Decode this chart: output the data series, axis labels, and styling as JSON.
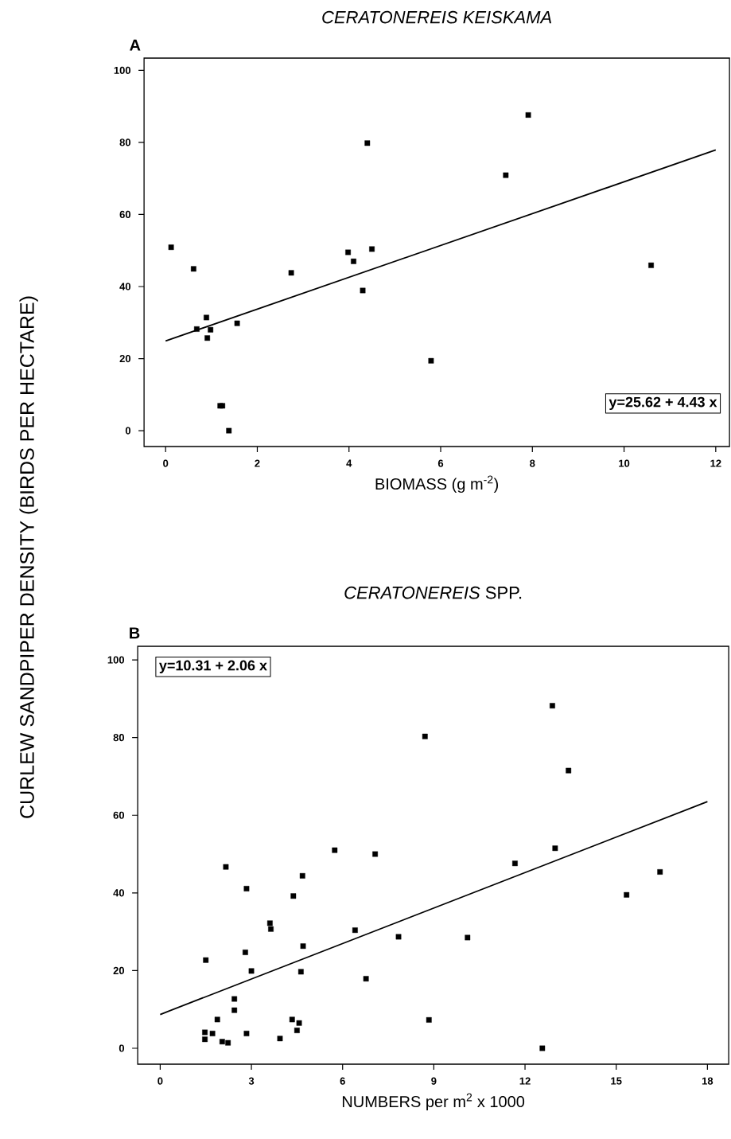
{
  "chart_data": [
    {
      "type": "scatter",
      "title": "*CERATONEREIS KEISKAMA*",
      "xlabel": "BIOMASS  (g m$^{-2}$)",
      "ylabel": "CURLEW SANDPIPER DENSITY (BIRDS PER HECTARE)",
      "annotations": [
        "A",
        "y=25.62 + 4.43 x"
      ],
      "marker": "square",
      "xlim": [
        -0.47,
        12.3
      ],
      "ylim": [
        -4.4,
        103.4
      ],
      "xticks": [
        0,
        2,
        4,
        6,
        8,
        10,
        12
      ],
      "yticks": [
        0,
        20,
        40,
        60,
        80,
        100
      ],
      "series": [
        {
          "color": "#000000",
          "x": [
            0.12,
            0.61,
            0.68,
            0.89,
            0.91,
            0.98,
            1.19,
            1.24,
            1.38,
            1.56,
            2.74,
            3.98,
            4.1,
            4.3,
            4.4,
            4.5,
            5.79,
            7.42,
            7.91,
            10.59
          ],
          "values": [
            50.9,
            44.9,
            28.2,
            31.4,
            25.7,
            28.0,
            6.9,
            6.9,
            0,
            29.8,
            43.8,
            49.5,
            47.0,
            38.9,
            79.8,
            50.4,
            19.4,
            70.9,
            87.6,
            45.9
          ]
        },
        {
          "type": "line",
          "marker": "none",
          "color": "#000000",
          "x": [
            0,
            12
          ],
          "values": [
            24.9,
            77.9
          ]
        }
      ]
    },
    {
      "type": "scatter",
      "title": "*CERATONEREIS*    SPP.",
      "xlabel": "NUMBERS per m$^{2}$ x 1000",
      "annotations": [
        "B",
        "y=10.31 +  2.06 x"
      ],
      "marker": "square",
      "xlim": [
        -0.74,
        18.7
      ],
      "ylim": [
        -4.1,
        103.5
      ],
      "xticks": [
        0,
        3,
        6,
        9,
        12,
        15,
        18
      ],
      "yticks": [
        0,
        20,
        40,
        60,
        80,
        100
      ],
      "series": [
        {
          "color": "#000000",
          "x": [
            8.71,
            5.74,
            7.07,
            2.16,
            4.68,
            2.84,
            4.38,
            3.61,
            3.64,
            6.41,
            7.84,
            4.7,
            1.5,
            2.8,
            3.0,
            4.63,
            6.77,
            2.44,
            2.44,
            1.88,
            8.84,
            4.34,
            4.57,
            4.5,
            1.47,
            1.72,
            1.47,
            2.84,
            3.94,
            2.04,
            2.23,
            12.9,
            13.43,
            12.99,
            11.67,
            16.44,
            15.34,
            10.11,
            12.57
          ],
          "values": [
            80.3,
            51.0,
            50.0,
            46.7,
            44.4,
            41.1,
            39.2,
            32.2,
            30.7,
            30.4,
            28.7,
            26.3,
            22.7,
            24.7,
            19.9,
            19.7,
            17.9,
            12.7,
            9.8,
            7.4,
            7.3,
            7.4,
            6.5,
            4.6,
            4.1,
            3.8,
            2.3,
            3.8,
            2.5,
            1.7,
            1.4,
            88.2,
            71.5,
            51.5,
            47.6,
            45.4,
            39.5,
            28.5,
            0
          ]
        },
        {
          "type": "line",
          "marker": "none",
          "color": "#000000",
          "x": [
            0,
            18
          ],
          "values": [
            8.7,
            63.5
          ]
        }
      ]
    }
  ]
}
